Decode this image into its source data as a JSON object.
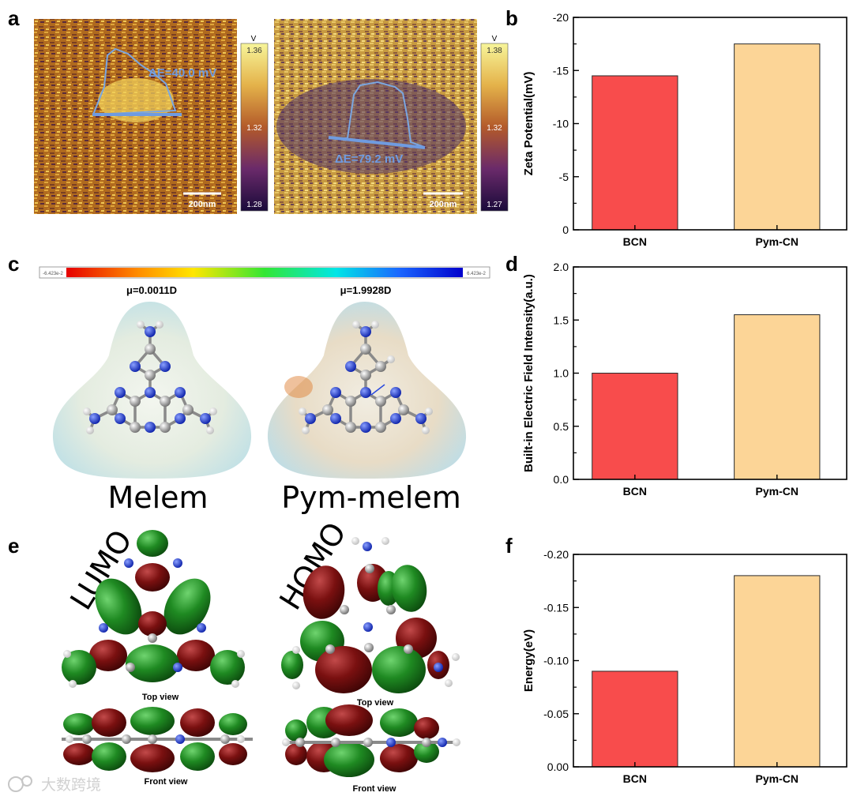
{
  "panels": {
    "a": "a",
    "b": "b",
    "c": "c",
    "d": "d",
    "e": "e",
    "f": "f"
  },
  "kpfm": [
    {
      "delta_e": "ΔE=40.0 mV",
      "scale_bar": "200nm",
      "unit": "V",
      "cb_top": "1.36",
      "cb_mid": "1.32",
      "cb_bot": "1.28"
    },
    {
      "delta_e": "ΔE=79.2 mV",
      "scale_bar": "200nm",
      "unit": "V",
      "cb_top": "1.38",
      "cb_mid": "1.32",
      "cb_bot": "1.27"
    }
  ],
  "esp": {
    "scale_min": "-6.423e-2",
    "scale_max": "6.423e-2",
    "melem": {
      "dipole": "μ=0.0011D",
      "name": "Melem"
    },
    "pym": {
      "dipole": "μ=1.9928D",
      "name": "Pym-melem"
    }
  },
  "orbitals": {
    "lumo": {
      "label": "LUMO",
      "top": "Top view",
      "front": "Front view"
    },
    "homo": {
      "label": "HOMO",
      "top": "Top view",
      "front": "Front view"
    }
  },
  "watermark": "大数跨境",
  "colors": {
    "bcn": "#f84c4c",
    "pym": "#fcd597"
  },
  "chart_data": [
    {
      "type": "bar",
      "panel": "b",
      "categories": [
        "BCN",
        "Pym-CN"
      ],
      "values": [
        -14.5,
        -17.5
      ],
      "ylabel": "Zeta Potential(mV)",
      "ylim": [
        0,
        -20
      ],
      "yticks": [
        0,
        -5,
        -10,
        -15,
        -20
      ],
      "yticklabels": [
        "0",
        "-5",
        "-10",
        "-15",
        "-20"
      ]
    },
    {
      "type": "bar",
      "panel": "d",
      "categories": [
        "BCN",
        "Pym-CN"
      ],
      "values": [
        1.0,
        1.55
      ],
      "ylabel": "Built-in Electric Field Intensity(a.u.)",
      "ylim": [
        0,
        2.0
      ],
      "yticks": [
        0,
        0.5,
        1.0,
        1.5,
        2.0
      ],
      "yticklabels": [
        "0.0",
        "0.5",
        "1.0",
        "1.5",
        "2.0"
      ]
    },
    {
      "type": "bar",
      "panel": "f",
      "categories": [
        "BCN",
        "Pym-CN"
      ],
      "values": [
        -0.09,
        -0.18
      ],
      "ylabel": "Energy(eV)",
      "ylim": [
        0,
        -0.2
      ],
      "yticks": [
        0,
        -0.05,
        -0.1,
        -0.15,
        -0.2
      ],
      "yticklabels": [
        "0.00",
        "-0.05",
        "-0.10",
        "-0.15",
        "-0.20"
      ]
    }
  ]
}
